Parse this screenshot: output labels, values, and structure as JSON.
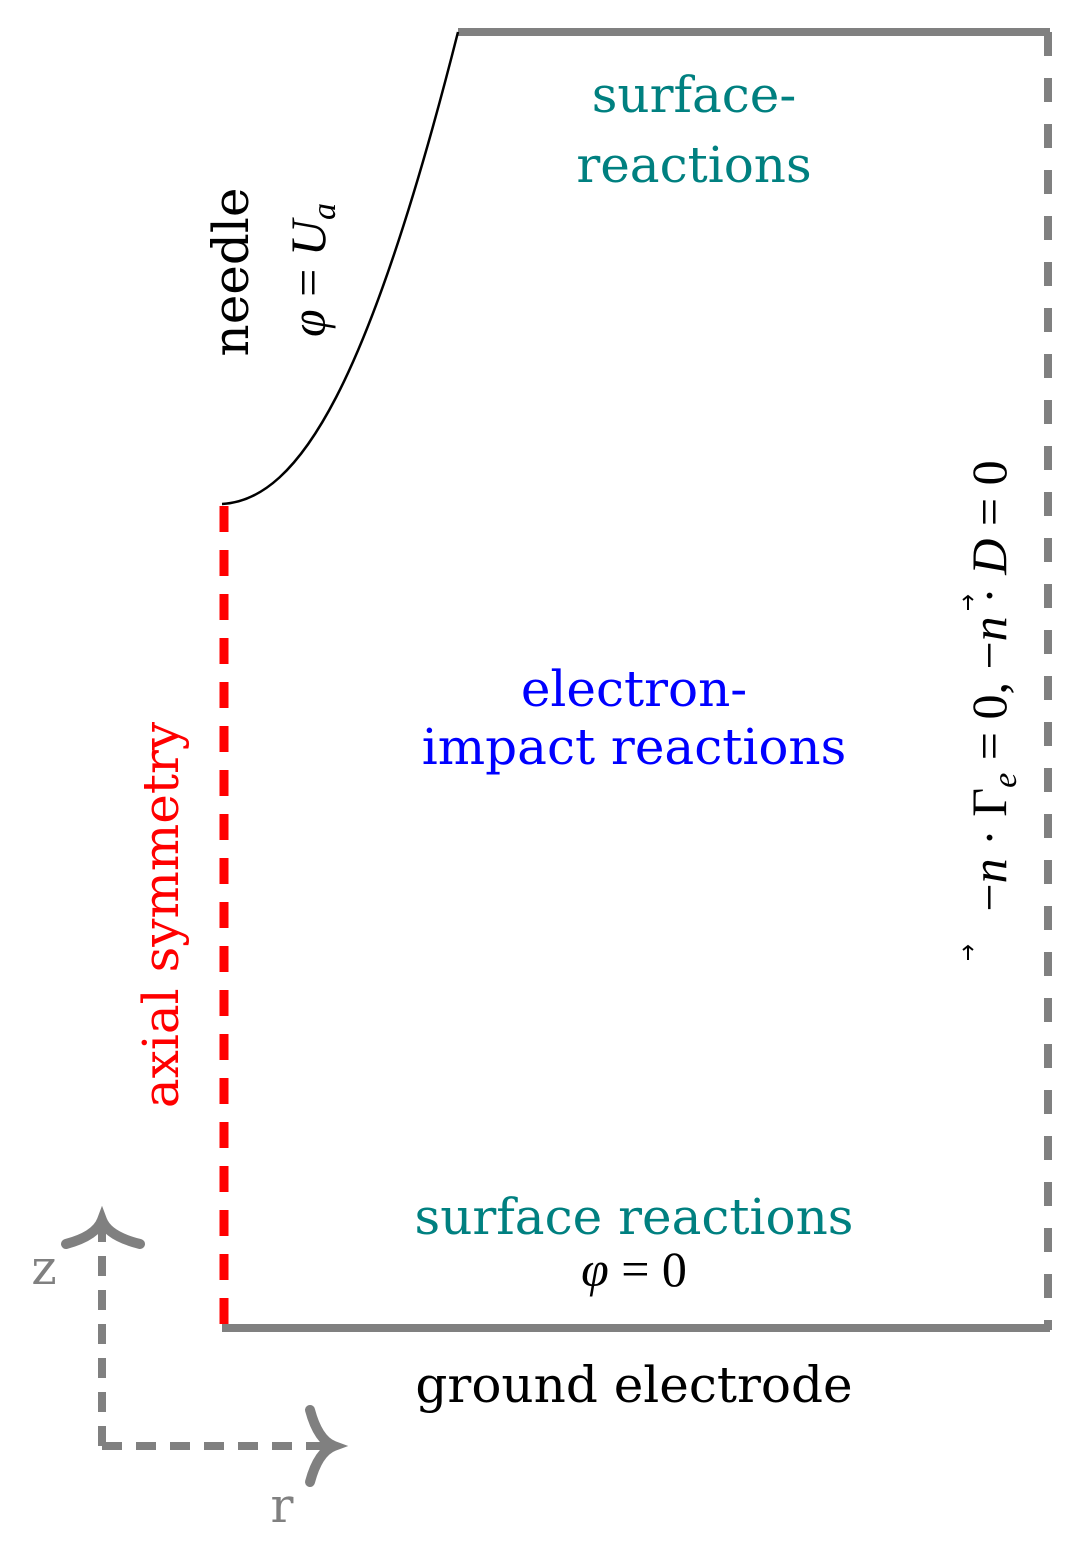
{
  "colors": {
    "boundary_gray": "#808080",
    "axis_red": "#ff0000",
    "teal": "#008080",
    "blue": "#0000ff",
    "black": "#000000",
    "axes_gray": "#808080"
  },
  "labels": {
    "surface_top_line1": "surface-",
    "surface_top_line2": "reactions",
    "needle_word": "needle",
    "needle_phi": "φ",
    "needle_eq": " = ",
    "needle_U": "U",
    "needle_sub": "a",
    "electron_line1": "electron-",
    "electron_line2": "impact reactions",
    "axial": "axial symmetry",
    "surface_bottom": "surface reactions",
    "ground_phi": "φ",
    "ground_eq": " = 0",
    "ground_electrode": "ground electrode",
    "right_minus1": "−",
    "right_n1": "n",
    "right_dot1": " · Γ",
    "right_e": "e",
    "right_eq1": " = 0, −",
    "right_n2": "n",
    "right_dot2": " · ",
    "right_D": "D",
    "right_eq2": " = 0",
    "axis_z": "z",
    "axis_r": "r"
  }
}
